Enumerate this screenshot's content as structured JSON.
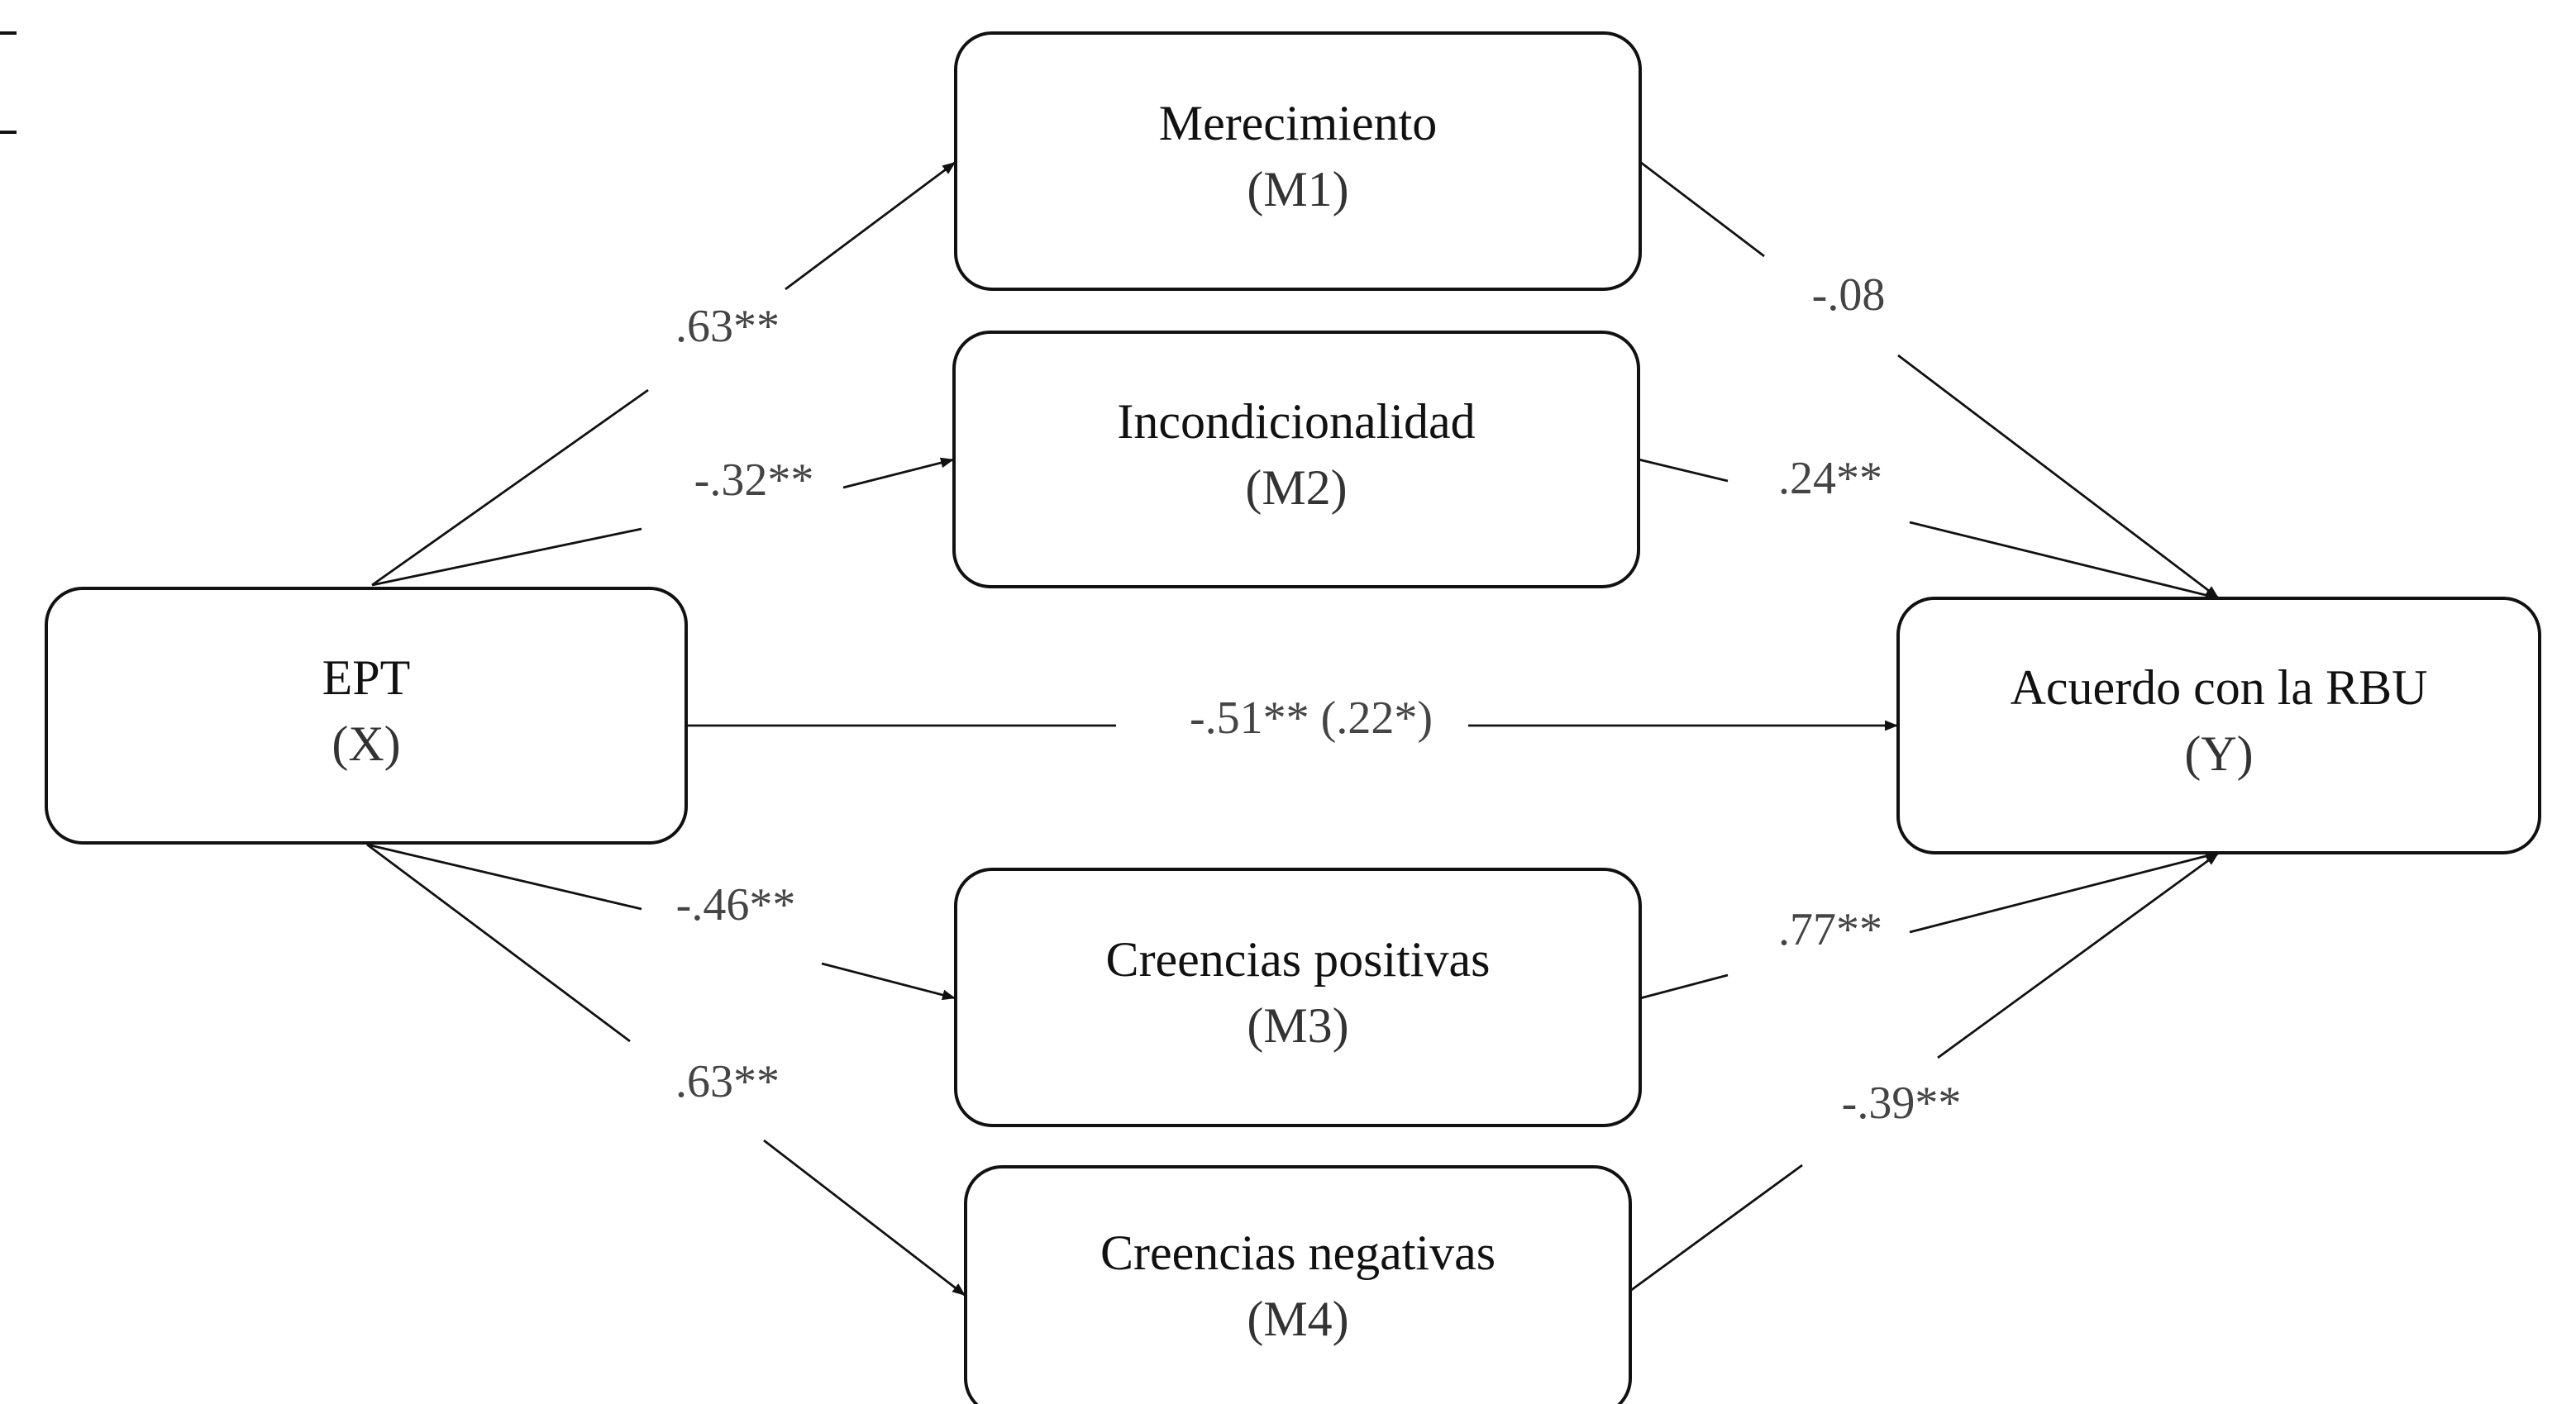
{
  "nodes": [
    {
      "id": "M1",
      "title": "Merecimiento",
      "subtitle": "(M1)"
    },
    {
      "id": "M2",
      "title": "Incondicionalidad",
      "subtitle": "(M2)"
    },
    {
      "id": "X",
      "title": "EPT",
      "subtitle": "(X)"
    },
    {
      "id": "Y",
      "title": "Acuerdo con la RBU",
      "subtitle": "(Y)"
    },
    {
      "id": "M3",
      "title": "Creencias positivas",
      "subtitle": "(M3)"
    },
    {
      "id": "M4",
      "title": "Creencias negativas",
      "subtitle": "(M4)"
    }
  ],
  "edges": [
    {
      "from": "X",
      "to": "M1",
      "label": ".63**"
    },
    {
      "from": "X",
      "to": "M2",
      "label": "-.32**"
    },
    {
      "from": "X",
      "to": "Y",
      "label": "-.51** (.22*)"
    },
    {
      "from": "X",
      "to": "M3",
      "label": "-.46**"
    },
    {
      "from": "X",
      "to": "M4",
      "label": ".63**"
    },
    {
      "from": "M1",
      "to": "Y",
      "label": "-.08"
    },
    {
      "from": "M2",
      "to": "Y",
      "label": ".24**"
    },
    {
      "from": "M3",
      "to": "Y",
      "label": ".77**"
    },
    {
      "from": "M4",
      "to": "Y",
      "label": "-.39**"
    }
  ]
}
